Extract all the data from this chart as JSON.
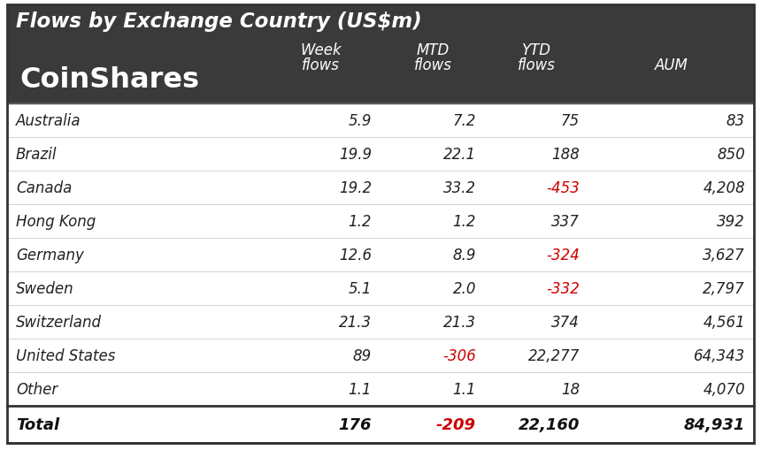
{
  "title": "Flows by Exchange Country (US$m)",
  "logo_text": "CoinShares",
  "header_bg": "#3a3a3a",
  "col_header_line1": [
    "Week",
    "MTD",
    "YTD",
    ""
  ],
  "col_header_line2": [
    "flows",
    "flows",
    "flows",
    "AUM"
  ],
  "countries": [
    "Australia",
    "Brazil",
    "Canada",
    "Hong Kong",
    "Germany",
    "Sweden",
    "Switzerland",
    "United States",
    "Other"
  ],
  "week_flows": [
    "5.9",
    "19.9",
    "19.2",
    "1.2",
    "12.6",
    "5.1",
    "21.3",
    "89",
    "1.1"
  ],
  "mtd_flows": [
    "7.2",
    "22.1",
    "33.2",
    "1.2",
    "8.9",
    "2.0",
    "21.3",
    "-306",
    "1.1"
  ],
  "ytd_flows": [
    "75",
    "188",
    "-453",
    "337",
    "-324",
    "-332",
    "374",
    "22,277",
    "18"
  ],
  "aum": [
    "83",
    "850",
    "4,208",
    "392",
    "3,627",
    "2,797",
    "4,561",
    "64,343",
    "4,070"
  ],
  "total_row": [
    "Total",
    "176",
    "-209",
    "22,160",
    "84,931"
  ],
  "negative_color": "#cc0000",
  "normal_color": "#222222",
  "total_color": "#111111",
  "figsize": [
    8.6,
    5.1
  ],
  "dpi": 100
}
